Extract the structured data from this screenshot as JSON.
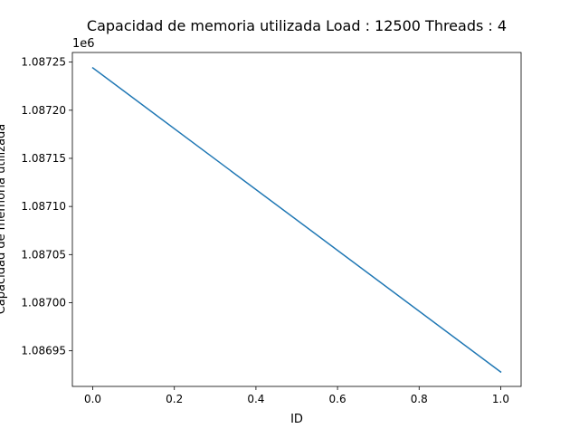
{
  "chart_data": {
    "type": "line",
    "title": "Capacidad de memoria utilizada Load : 12500 Threads : 4",
    "xlabel": "ID",
    "ylabel": "Capacidad de memoria utilizada",
    "y_offset_label": "1e6",
    "xlim": [
      -0.05,
      1.05
    ],
    "ylim": [
      1.086913,
      1.08726
    ],
    "x_ticks": [
      0.0,
      0.2,
      0.4,
      0.6,
      0.8,
      1.0
    ],
    "x_tick_labels": [
      "0.0",
      "0.2",
      "0.4",
      "0.6",
      "0.8",
      "1.0"
    ],
    "y_ticks": [
      1.08695,
      1.087,
      1.08705,
      1.0871,
      1.08715,
      1.0872,
      1.08725
    ],
    "y_tick_labels": [
      "1.08695",
      "1.08700",
      "1.08705",
      "1.08710",
      "1.08715",
      "1.08720",
      "1.08725"
    ],
    "grid": false,
    "series": [
      {
        "x": [
          0,
          1
        ],
        "values": [
          1.087244,
          1.086928
        ],
        "color": "#1f77b4"
      }
    ]
  }
}
